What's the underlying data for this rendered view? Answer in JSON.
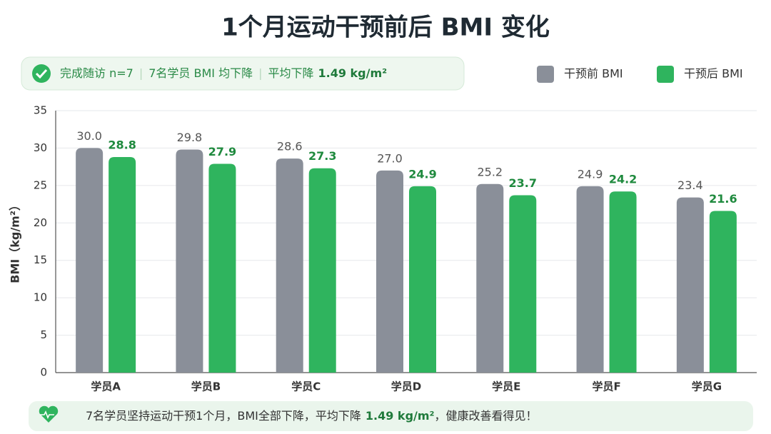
{
  "chart_data": {
    "type": "bar",
    "title": "1个月运动干预前后 BMI 变化",
    "badge": [
      "完成随访 n=7",
      "7名学员 BMI 均下降",
      "平均下降",
      "1.49 kg/m²"
    ],
    "y_label": "BMI（kg/m²）",
    "categories": [
      "学员A",
      "学员B",
      "学员C",
      "学员D",
      "学员E",
      "学员F",
      "学员G"
    ],
    "series": [
      {
        "name": "干预前 BMI",
        "color": "#8a8f99",
        "values": [
          30.0,
          29.8,
          28.6,
          27.0,
          25.2,
          24.9,
          23.4
        ],
        "value_labels": [
          "30.0",
          "29.8",
          "28.6",
          "27.0",
          "25.2",
          "24.9",
          "23.4"
        ]
      },
      {
        "name": "干预后 BMI",
        "color": "#2fb45e",
        "values": [
          28.8,
          27.9,
          27.3,
          24.9,
          23.7,
          24.2,
          21.6
        ],
        "value_labels": [
          "28.8",
          "27.9",
          "27.3",
          "24.9",
          "23.7",
          "24.2",
          "21.6"
        ]
      }
    ],
    "ylim": [
      0,
      35
    ],
    "yticks": [
      0,
      5,
      10,
      15,
      20,
      25,
      30,
      35
    ],
    "grid": true,
    "legend": "top-right",
    "footer": [
      "7名学员坚持运动干预1个月，BMI全部下降，平均下降",
      "1.49 kg/m²",
      "，健康改善看得见！"
    ]
  }
}
